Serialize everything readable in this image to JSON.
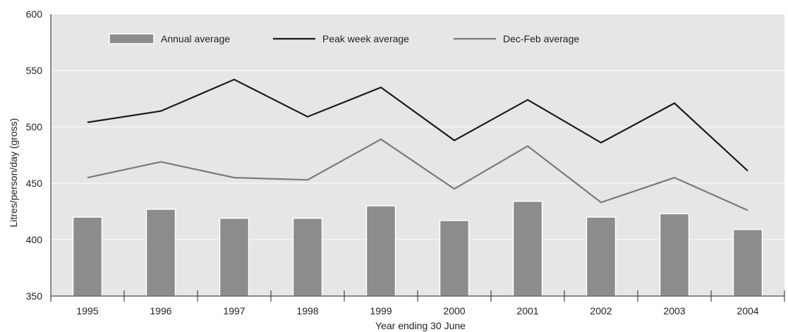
{
  "chart_data": {
    "type": "bar",
    "categories": [
      "1995",
      "1996",
      "1997",
      "1998",
      "1999",
      "2000",
      "2001",
      "2002",
      "2003",
      "2004"
    ],
    "series": [
      {
        "name": "Annual average",
        "type": "bar",
        "color": "#8c8c8c",
        "values": [
          420,
          427,
          419,
          419,
          430,
          417,
          434,
          420,
          423,
          409
        ]
      },
      {
        "name": "Peak week average",
        "type": "line",
        "color": "#1a1a1a",
        "values": [
          504,
          514,
          542,
          509,
          535,
          488,
          524,
          486,
          521,
          461
        ]
      },
      {
        "name": "Dec-Feb average",
        "type": "line",
        "color": "#7a7a7a",
        "values": [
          455,
          469,
          455,
          453,
          489,
          445,
          483,
          433,
          455,
          426
        ]
      }
    ],
    "xlabel": "Year ending 30 June",
    "ylabel": "Litres/person/day (gross)",
    "ylim": [
      350,
      600
    ],
    "yticks": [
      "350",
      "400",
      "450",
      "500",
      "550",
      "600"
    ],
    "grid": true,
    "legend": "top-left, horizontal",
    "plot_background": "#e6e6e6"
  }
}
